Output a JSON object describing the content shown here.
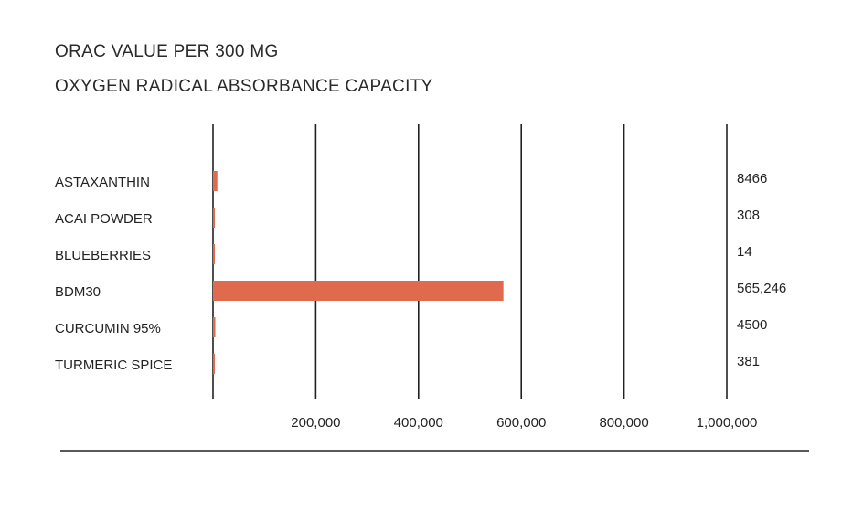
{
  "chart_data": {
    "type": "bar",
    "orientation": "horizontal",
    "title": "ORAC VALUE PER 300 MG",
    "subtitle": "OXYGEN RADICAL ABSORBANCE CAPACITY",
    "categories": [
      "ASTAXANTHIN",
      "ACAI POWDER",
      "BLUEBERRIES",
      "BDM30",
      "CURCUMIN 95%",
      "TURMERIC SPICE"
    ],
    "values": [
      8466,
      308,
      14,
      565246,
      4500,
      381
    ],
    "value_labels": [
      "8466",
      "308",
      "14",
      "565,246",
      "4500",
      "381"
    ],
    "xlim": [
      0,
      1000000
    ],
    "xticks": [
      200000,
      400000,
      600000,
      800000,
      1000000
    ],
    "xtick_labels": [
      "200,000",
      "400,000",
      "600,000",
      "800,000",
      "1,000,000"
    ],
    "grid": "vertical",
    "bar_color": "#e06a4e"
  }
}
